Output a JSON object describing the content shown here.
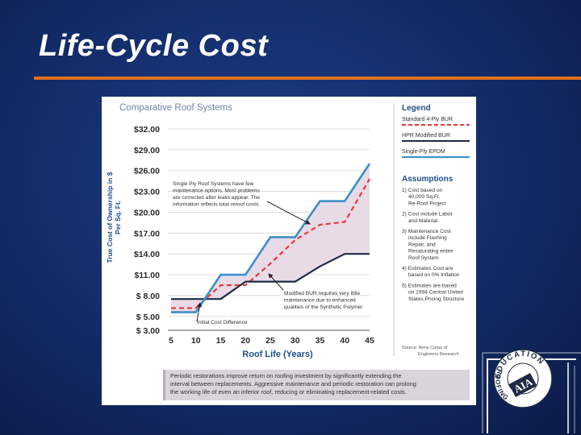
{
  "slide": {
    "title": "Life-Cycle Cost"
  },
  "colors": {
    "accent": "#e0701e",
    "standard_bur": "#e8383d",
    "hpr_bur": "#1f2a44",
    "single_ply": "#3d8fc8",
    "shade": "#e8dbe6",
    "chart_title": "#6f86a8",
    "heading": "#1f4e8a"
  },
  "chart_data": {
    "type": "line",
    "title": "Comparative Roof Systems",
    "xlabel": "Roof Life (Years)",
    "ylabel_lines": [
      "True Cost of Ownership in $",
      "Per Sq. Ft."
    ],
    "x_ticks": [
      "5",
      "10",
      "15",
      "20",
      "25",
      "30",
      "35",
      "40",
      "45"
    ],
    "y_ticks": [
      "$32.00",
      "$29.00",
      "$26.00",
      "$23.00",
      "$20.00",
      "$17.00",
      "$14.00",
      "$11.00",
      "$ 8.00",
      "$ 5.00",
      "$ 3.00"
    ],
    "xlim": [
      5,
      45
    ],
    "ylim": [
      3,
      32
    ],
    "series": [
      {
        "name": "Standard 4-Ply BUR",
        "style": "dashed",
        "x": [
          5,
          10,
          15,
          20,
          25,
          30,
          35,
          40,
          45
        ],
        "y": [
          6.2,
          6.2,
          9.5,
          9.5,
          12.6,
          16.0,
          18.2,
          18.6,
          24.8
        ]
      },
      {
        "name": "HPR Modified BUR",
        "style": "solid",
        "x": [
          5,
          10,
          15,
          20,
          25,
          30,
          35,
          40,
          45
        ],
        "y": [
          7.5,
          7.5,
          7.5,
          10.0,
          10.0,
          10.0,
          12.2,
          14.0,
          14.0
        ]
      },
      {
        "name": "Single-Ply EPDM",
        "style": "solid",
        "x": [
          5,
          10,
          15,
          20,
          25,
          30,
          35,
          40,
          45
        ],
        "y": [
          5.6,
          5.6,
          11.0,
          11.0,
          16.4,
          16.4,
          21.6,
          21.6,
          27.0
        ]
      }
    ],
    "annotations": [
      {
        "lines": [
          "Single Ply Roof Systems have few",
          "maintenance options. Most problems",
          "are corrected after leaks appear. The",
          "information reflects total reroof costs."
        ]
      },
      {
        "lines": [
          "Modified BUR requires very little",
          "maintenance due to enhanced",
          "qualities of the Synthetic Polymer"
        ]
      },
      {
        "lines": [
          "Initial Cost Difference"
        ]
      }
    ],
    "legend": {
      "heading": "Legend",
      "entries": [
        "Standard 4-Ply BUR",
        "HPR Modified BUR",
        "Single-Ply EPDM"
      ]
    },
    "assumptions": {
      "heading": "Assumptions",
      "items": [
        [
          "1) Cost based on",
          "40,000 Sq.Ft.",
          "Re-Roof Project"
        ],
        [
          "2) Cost include Labor",
          "and Material"
        ],
        [
          "3) Maintenance Cost",
          "include Flashing",
          "Repair, and",
          "Resaturating entire",
          "Roof System"
        ],
        [
          "4) Estimates Cost are",
          "based on 0% Inflation"
        ],
        [
          "5) Estimates are based",
          "on 1994 Central United",
          "States Pricing Structure"
        ]
      ]
    },
    "source": [
      "Source: Army Corps of",
      "Engineers Research"
    ]
  },
  "caption": {
    "lines": [
      "Periodic restorations improve return on roofing investment by significantly extending the",
      "interval between replacements. Aggressive maintenance and periodic restoration can prolong",
      "the working life of even an inferior roof, reducing or eliminating replacement-related costs."
    ]
  },
  "logo": {
    "ring_text": "EDUCATION",
    "tail_text": "ROOFING",
    "mark_text": "AIA"
  }
}
